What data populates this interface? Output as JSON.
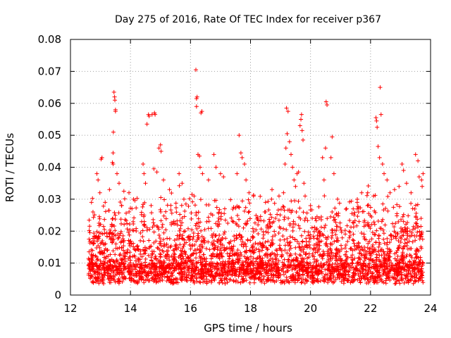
{
  "chart_data": {
    "type": "scatter",
    "title": "Day 275 of 2016, Rate Of TEC Index for receiver p367",
    "xlabel": "GPS time / hours",
    "ylabel": "ROTI / TECUs",
    "xlim": [
      12,
      24
    ],
    "ylim": [
      0,
      0.08
    ],
    "xticks": [
      "12",
      "14",
      "16",
      "18",
      "20",
      "22",
      "24"
    ],
    "yticks": [
      "0",
      "0.01",
      "0.02",
      "0.03",
      "0.04",
      "0.05",
      "0.06",
      "0.07",
      "0.08"
    ],
    "grid": true,
    "marker": "+",
    "color": "#ff0000",
    "x_range_data": [
      12.6,
      23.75
    ],
    "series": [
      {
        "name": "ROTI",
        "points": [
          [
            12.62,
            0.0175
          ],
          [
            12.7,
            0.029
          ],
          [
            12.75,
            0.026
          ],
          [
            12.88,
            0.038
          ],
          [
            12.92,
            0.036
          ],
          [
            12.98,
            0.032
          ],
          [
            13.02,
            0.0425
          ],
          [
            13.05,
            0.043
          ],
          [
            13.3,
            0.033
          ],
          [
            13.45,
            0.0635
          ],
          [
            13.47,
            0.062
          ],
          [
            13.48,
            0.061
          ],
          [
            13.5,
            0.058
          ],
          [
            13.5,
            0.0575
          ],
          [
            13.43,
            0.051
          ],
          [
            13.42,
            0.0445
          ],
          [
            13.4,
            0.0415
          ],
          [
            13.42,
            0.041
          ],
          [
            13.55,
            0.038
          ],
          [
            13.62,
            0.035
          ],
          [
            13.7,
            0.028
          ],
          [
            13.78,
            0.0325
          ],
          [
            13.95,
            0.032
          ],
          [
            14.1,
            0.03
          ],
          [
            14.42,
            0.041
          ],
          [
            14.45,
            0.038
          ],
          [
            14.5,
            0.035
          ],
          [
            14.55,
            0.0535
          ],
          [
            14.6,
            0.0565
          ],
          [
            14.62,
            0.056
          ],
          [
            14.72,
            0.0565
          ],
          [
            14.8,
            0.057
          ],
          [
            14.82,
            0.0565
          ],
          [
            14.78,
            0.0395
          ],
          [
            14.88,
            0.0385
          ],
          [
            14.95,
            0.046
          ],
          [
            15.0,
            0.047
          ],
          [
            15.02,
            0.045
          ],
          [
            15.1,
            0.036
          ],
          [
            15.3,
            0.033
          ],
          [
            15.62,
            0.038
          ],
          [
            15.72,
            0.035
          ],
          [
            15.78,
            0.03
          ],
          [
            16.05,
            0.0315
          ],
          [
            16.12,
            0.031
          ],
          [
            16.18,
            0.0705
          ],
          [
            16.2,
            0.0615
          ],
          [
            16.22,
            0.062
          ],
          [
            16.2,
            0.059
          ],
          [
            16.25,
            0.044
          ],
          [
            16.3,
            0.0435
          ],
          [
            16.35,
            0.057
          ],
          [
            16.38,
            0.0575
          ],
          [
            16.32,
            0.04
          ],
          [
            16.4,
            0.038
          ],
          [
            16.6,
            0.036
          ],
          [
            16.78,
            0.044
          ],
          [
            16.85,
            0.04
          ],
          [
            17.0,
            0.038
          ],
          [
            17.1,
            0.037
          ],
          [
            17.55,
            0.038
          ],
          [
            17.62,
            0.05
          ],
          [
            17.68,
            0.0445
          ],
          [
            17.72,
            0.043
          ],
          [
            17.8,
            0.041
          ],
          [
            17.85,
            0.036
          ],
          [
            17.95,
            0.032
          ],
          [
            18.1,
            0.031
          ],
          [
            18.5,
            0.029
          ],
          [
            18.7,
            0.03
          ],
          [
            18.95,
            0.031
          ],
          [
            19.1,
            0.032
          ],
          [
            19.15,
            0.041
          ],
          [
            19.18,
            0.046
          ],
          [
            19.2,
            0.0585
          ],
          [
            19.25,
            0.0575
          ],
          [
            19.22,
            0.0505
          ],
          [
            19.3,
            0.048
          ],
          [
            19.35,
            0.044
          ],
          [
            19.4,
            0.04
          ],
          [
            19.45,
            0.036
          ],
          [
            19.5,
            0.034
          ],
          [
            19.55,
            0.038
          ],
          [
            19.6,
            0.0385
          ],
          [
            19.65,
            0.053
          ],
          [
            19.68,
            0.055
          ],
          [
            19.7,
            0.0565
          ],
          [
            19.72,
            0.0515
          ],
          [
            19.75,
            0.0485
          ],
          [
            19.78,
            0.035
          ],
          [
            19.82,
            0.031
          ],
          [
            20.0,
            0.028
          ],
          [
            20.4,
            0.043
          ],
          [
            20.45,
            0.036
          ],
          [
            20.5,
            0.046
          ],
          [
            20.52,
            0.0605
          ],
          [
            20.55,
            0.0595
          ],
          [
            20.68,
            0.043
          ],
          [
            20.72,
            0.0495
          ],
          [
            20.78,
            0.038
          ],
          [
            20.9,
            0.03
          ],
          [
            21.2,
            0.027
          ],
          [
            21.6,
            0.026
          ],
          [
            21.9,
            0.028
          ],
          [
            22.1,
            0.031
          ],
          [
            22.18,
            0.0555
          ],
          [
            22.2,
            0.0545
          ],
          [
            22.22,
            0.0525
          ],
          [
            22.25,
            0.0465
          ],
          [
            22.3,
            0.043
          ],
          [
            22.32,
            0.065
          ],
          [
            22.35,
            0.0565
          ],
          [
            22.4,
            0.041
          ],
          [
            22.45,
            0.038
          ],
          [
            22.55,
            0.036
          ],
          [
            22.65,
            0.032
          ],
          [
            22.8,
            0.033
          ],
          [
            22.95,
            0.034
          ],
          [
            23.05,
            0.041
          ],
          [
            23.1,
            0.039
          ],
          [
            23.2,
            0.035
          ],
          [
            23.35,
            0.032
          ],
          [
            23.5,
            0.044
          ],
          [
            23.58,
            0.042
          ],
          [
            23.62,
            0.037
          ],
          [
            23.7,
            0.036
          ],
          [
            23.72,
            0.034
          ],
          [
            23.75,
            0.038
          ]
        ]
      }
    ]
  }
}
